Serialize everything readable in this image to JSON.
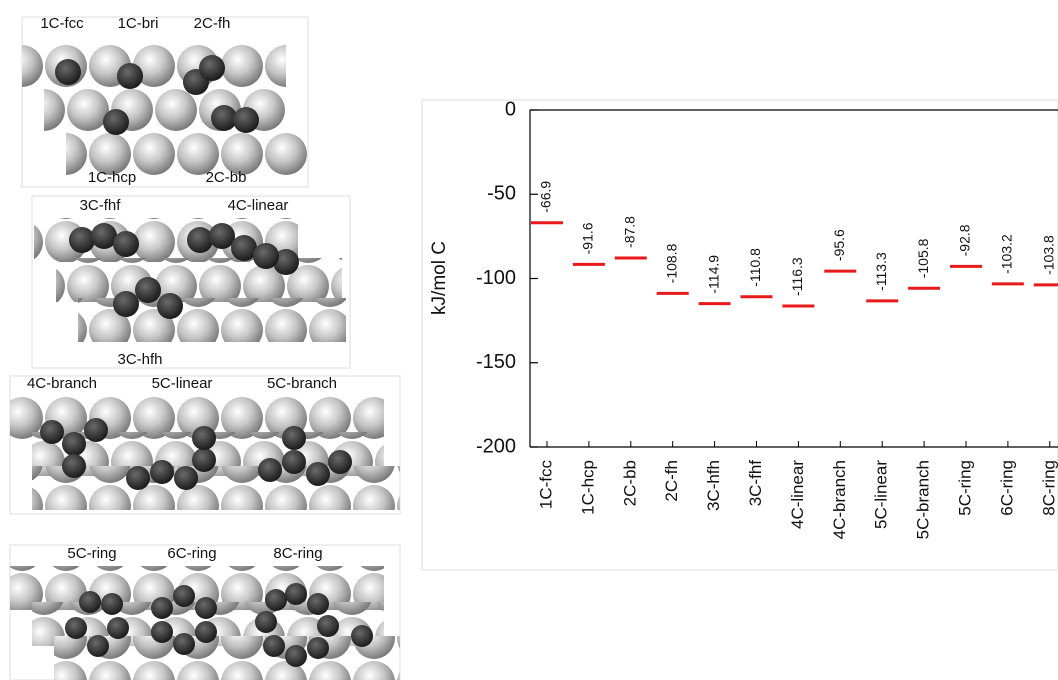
{
  "chart_data": {
    "type": "level",
    "ylabel": "kJ/mol C",
    "categories": [
      "1C-fcc",
      "1C-hcp",
      "2C-bb",
      "2C-fh",
      "3C-hfh",
      "3C-fhf",
      "4C-linear",
      "4C-branch",
      "5C-linear",
      "5C-branch",
      "5C-ring",
      "6C-ring",
      "8C-ring"
    ],
    "values": [
      -66.9,
      -91.6,
      -87.8,
      -108.8,
      -114.9,
      -110.8,
      -116.3,
      -95.6,
      -113.3,
      -105.8,
      -92.8,
      -103.2,
      -103.8
    ],
    "color": "#e8191b",
    "ylim": [
      -200,
      0
    ],
    "yticks": [
      0,
      -50,
      -100,
      -150,
      -200
    ]
  },
  "panels": [
    {
      "labels": [
        "1C-fcc",
        "1C-bri",
        "2C-fh",
        "1C-hcp",
        "2C-bb"
      ]
    },
    {
      "labels": [
        "3C-fhf",
        "4C-linear",
        "3C-hfh"
      ]
    },
    {
      "labels": [
        "4C-branch",
        "5C-linear",
        "5C-branch"
      ]
    },
    {
      "labels": [
        "5C-ring",
        "6C-ring",
        "8C-ring"
      ]
    }
  ]
}
